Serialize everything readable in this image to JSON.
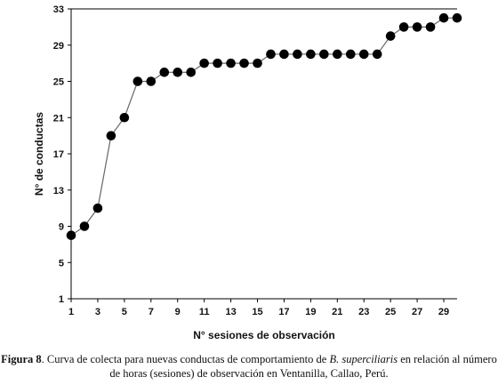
{
  "chart_data": {
    "type": "line",
    "title": "",
    "xlabel": "N° sesiones de observación",
    "ylabel": "N° de conductas",
    "xlim": [
      1,
      30
    ],
    "ylim": [
      1,
      33
    ],
    "xticks": [
      1,
      3,
      5,
      7,
      9,
      11,
      13,
      15,
      17,
      19,
      21,
      23,
      25,
      27,
      29
    ],
    "yticks": [
      1,
      5,
      9,
      13,
      17,
      21,
      25,
      29,
      33
    ],
    "grid": false,
    "legend": "none",
    "marker": "circle",
    "series": [
      {
        "x": [
          1,
          2,
          3,
          4,
          5,
          6,
          7,
          8,
          9,
          10,
          11,
          12,
          13,
          14,
          15,
          16,
          17,
          18,
          19,
          20,
          21,
          22,
          23,
          24,
          25,
          26,
          27,
          28,
          29,
          30
        ],
        "values": [
          8,
          9,
          11,
          19,
          21,
          25,
          25,
          26,
          26,
          26,
          27,
          27,
          27,
          27,
          27,
          28,
          28,
          28,
          28,
          28,
          28,
          28,
          28,
          28,
          30,
          31,
          31,
          31,
          32,
          32
        ]
      }
    ],
    "line_color": "#666666",
    "marker_color": "#000000"
  },
  "caption": {
    "label": "Figura 8",
    "text_before": ". Curva de colecta para nuevas conductas de comportamiento de ",
    "species": "B. superciliaris",
    "text_after": " en relación al número de horas (sesiones) de observación en Ventanilla, Callao, Perú."
  }
}
